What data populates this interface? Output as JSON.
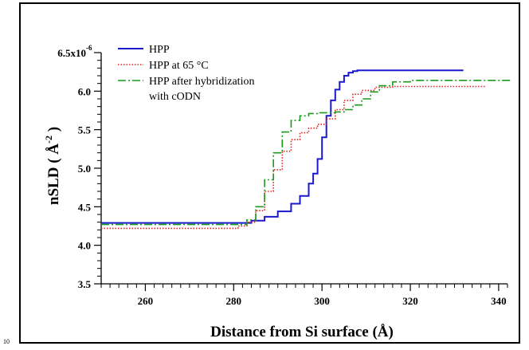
{
  "page": {
    "corner_note": "10"
  },
  "chart_data": {
    "type": "line",
    "title": "",
    "xlabel": "Distance from Si surface (Å)",
    "ylabel": "nSLD ( Å",
    "ylabel_exponent": "-2",
    "ylabel_suffix": " )",
    "xlim": [
      250,
      342
    ],
    "ylim": [
      3.5,
      6.5
    ],
    "x_ticks": [
      260,
      280,
      300,
      320,
      340
    ],
    "x_tick_labels": [
      "260",
      "280",
      "300",
      "320",
      "340"
    ],
    "y_ticks": [
      3.5,
      4.0,
      4.5,
      5.0,
      5.5,
      6.0,
      6.5
    ],
    "y_tick_labels": [
      "3.5",
      "4.0",
      "4.5",
      "5.0",
      "5.5",
      "6.0",
      "6.5x10"
    ],
    "y_top_exponent": "-6",
    "grid": false,
    "legend_position": "top-left",
    "series": [
      {
        "name": "HPP",
        "color": "#1a1acc",
        "style": "solid",
        "x": [
          250,
          280,
          284,
          287,
          290,
          293,
          295,
          297,
          298,
          299,
          300,
          301,
          302,
          303,
          304,
          305,
          306,
          307,
          308,
          310,
          320,
          332
        ],
        "y": [
          4.29,
          4.29,
          4.32,
          4.37,
          4.44,
          4.54,
          4.64,
          4.8,
          4.93,
          5.12,
          5.4,
          5.68,
          5.88,
          6.02,
          6.12,
          6.2,
          6.24,
          6.26,
          6.27,
          6.27,
          6.27,
          6.27
        ]
      },
      {
        "name": "HPP at 65 °C",
        "color": "#e02020",
        "style": "dotted",
        "x": [
          250,
          278,
          281,
          283,
          285,
          287,
          289,
          291,
          293,
          295,
          297,
          299,
          301,
          303,
          305,
          307,
          309,
          312,
          316,
          320,
          337
        ],
        "y": [
          4.22,
          4.22,
          4.25,
          4.3,
          4.45,
          4.7,
          4.98,
          5.22,
          5.37,
          5.46,
          5.52,
          5.57,
          5.64,
          5.76,
          5.88,
          5.96,
          6.01,
          6.05,
          6.06,
          6.06,
          6.06
        ]
      },
      {
        "name": "HPP after hybridization",
        "name_line2": "with cODN",
        "color": "#1a9a1a",
        "style": "dashdot",
        "x": [
          250,
          280,
          283,
          285,
          287,
          289,
          291,
          293,
          295,
          297,
          299,
          301,
          303,
          305,
          307,
          309,
          311,
          313,
          316,
          320,
          343
        ],
        "y": [
          4.27,
          4.27,
          4.33,
          4.5,
          4.85,
          5.2,
          5.47,
          5.62,
          5.68,
          5.71,
          5.72,
          5.72,
          5.73,
          5.76,
          5.82,
          5.9,
          5.99,
          6.07,
          6.12,
          6.14,
          6.14
        ]
      }
    ]
  }
}
